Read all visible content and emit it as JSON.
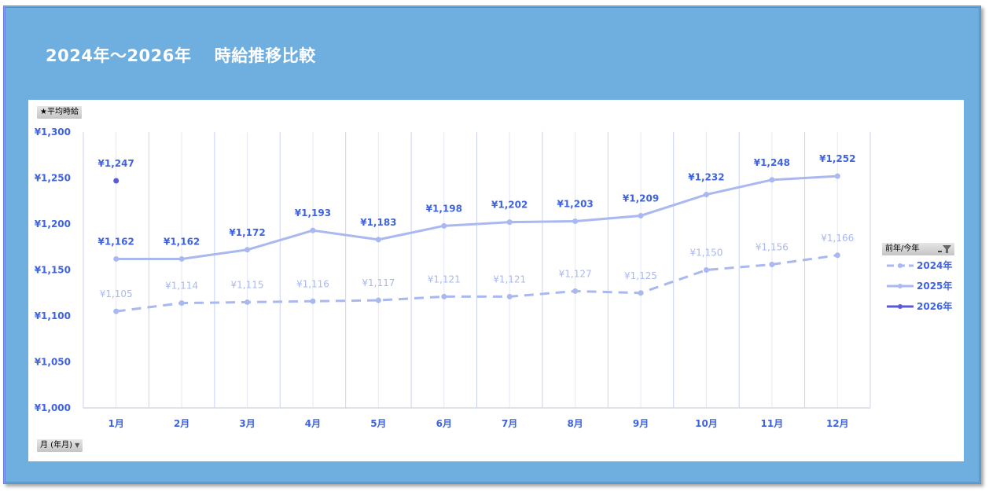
{
  "header": {
    "title": "2024年～2026年　 時給推移比較"
  },
  "buttons": {
    "value_field": "★平均時給",
    "axis_field": "月 (年月)",
    "legend_field": "前年/今年"
  },
  "colors": {
    "frame_bg": "#6eafe0",
    "frame_border": "#6a7fe2",
    "series_2024": "#a9b8f0",
    "series_2025": "#a9b8f0",
    "series_2026": "#5a5ad8",
    "label_text": "#3f63e0",
    "grid_major": "#c9d2f3",
    "grid_minor": "#e4e8f8"
  },
  "chart_data": {
    "type": "line",
    "title": "2024年～2026年　時給推移比較",
    "xlabel": "月 (年月)",
    "ylabel": "★平均時給",
    "categories": [
      "1月",
      "2月",
      "3月",
      "4月",
      "5月",
      "6月",
      "7月",
      "8月",
      "9月",
      "10月",
      "11月",
      "12月"
    ],
    "ylim": [
      1000,
      1300
    ],
    "yticks": [
      1000,
      1050,
      1100,
      1150,
      1200,
      1250,
      1300
    ],
    "ytick_labels": [
      "¥1,000",
      "¥1,050",
      "¥1,100",
      "¥1,150",
      "¥1,200",
      "¥1,250",
      "¥1,300"
    ],
    "grid": "vertical",
    "legend_title": "前年/今年",
    "legend_position": "right",
    "series": [
      {
        "name": "2024年",
        "style": "dashed",
        "values": [
          1105,
          1114,
          1115,
          1116,
          1117,
          1121,
          1121,
          1127,
          1125,
          1150,
          1156,
          1166
        ],
        "labels": [
          "¥1,105",
          "¥1,114",
          "¥1,115",
          "¥1,116",
          "¥1,117",
          "¥1,121",
          "¥1,121",
          "¥1,127",
          "¥1,125",
          "¥1,150",
          "¥1,156",
          "¥1,166"
        ]
      },
      {
        "name": "2025年",
        "style": "solid",
        "values": [
          1162,
          1162,
          1172,
          1193,
          1183,
          1198,
          1202,
          1203,
          1209,
          1232,
          1248,
          1252
        ],
        "labels": [
          "¥1,162",
          "¥1,162",
          "¥1,172",
          "¥1,193",
          "¥1,183",
          "¥1,198",
          "¥1,202",
          "¥1,203",
          "¥1,209",
          "¥1,232",
          "¥1,248",
          "¥1,252"
        ]
      },
      {
        "name": "2026年",
        "style": "solid",
        "values": [
          1247,
          null,
          null,
          null,
          null,
          null,
          null,
          null,
          null,
          null,
          null,
          null
        ],
        "labels": [
          "¥1,247",
          "",
          "",
          "",
          "",
          "",
          "",
          "",
          "",
          "",
          "",
          ""
        ]
      }
    ]
  }
}
